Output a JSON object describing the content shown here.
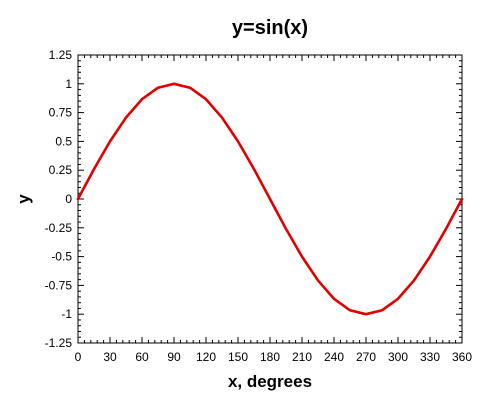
{
  "chart_data": {
    "type": "line",
    "title": "y=sin(x)",
    "xlabel": "x, degrees",
    "ylabel": "y",
    "xlim": [
      0,
      360
    ],
    "ylim": [
      -1.25,
      1.25
    ],
    "xticks": [
      "0",
      "30",
      "60",
      "90",
      "120",
      "150",
      "180",
      "210",
      "240",
      "270",
      "300",
      "330",
      "360"
    ],
    "yticks": [
      "1.25",
      "1",
      "0.75",
      "0.5",
      "0.25",
      "0",
      "-0.25",
      "-0.5",
      "-0.75",
      "-1",
      "-1.25"
    ],
    "grid": false,
    "series": [
      {
        "color": "#e00000",
        "x": [
          0,
          15,
          30,
          45,
          60,
          75,
          90,
          105,
          120,
          135,
          150,
          165,
          180,
          195,
          210,
          225,
          240,
          255,
          270,
          285,
          300,
          315,
          330,
          345,
          360
        ],
        "y": [
          0,
          0.259,
          0.5,
          0.707,
          0.866,
          0.966,
          1,
          0.966,
          0.866,
          0.707,
          0.5,
          0.259,
          0,
          -0.259,
          -0.5,
          -0.707,
          -0.866,
          -0.966,
          -1,
          -0.966,
          -0.866,
          -0.707,
          -0.5,
          -0.259,
          0
        ]
      }
    ]
  }
}
